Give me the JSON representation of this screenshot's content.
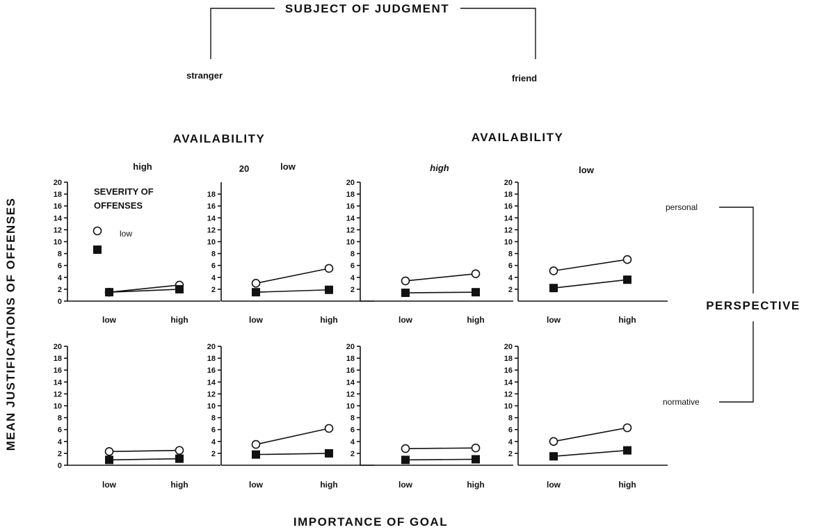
{
  "figure": {
    "top_title": "SUBJECT OF JUDGMENT",
    "subjects": [
      "stranger",
      "friend"
    ],
    "availability_label": "AVAILABILITY",
    "y_axis_label": "MEAN JUSTIFICATIONS OF OFFENSES",
    "x_axis_label": "IMPORTANCE OF GOAL",
    "perspective_label": "PERSPECTIVE",
    "perspectives": [
      "personal",
      "normative"
    ],
    "legend_title_line1": "SEVERITY OF",
    "legend_title_line2": "OFFENSES",
    "legend_low": "low",
    "stray_tick": "20"
  },
  "chart_data": [
    {
      "type": "line",
      "panel": "stranger / availability high / personal",
      "availability_label": "high",
      "categories": [
        "low",
        "high"
      ],
      "ylim": [
        0,
        20
      ],
      "yticks": [
        0,
        2,
        4,
        6,
        8,
        10,
        12,
        14,
        16,
        18,
        20
      ],
      "series": [
        {
          "marker": "open-circle",
          "values": [
            1.5,
            2.7
          ]
        },
        {
          "marker": "filled-square",
          "values": [
            1.5,
            2.0
          ]
        }
      ]
    },
    {
      "type": "line",
      "panel": "stranger / availability low / personal",
      "availability_label": "low",
      "categories": [
        "low",
        "high"
      ],
      "ylim": [
        0,
        20
      ],
      "yticks": [
        2,
        4,
        6,
        8,
        10,
        12,
        14,
        16,
        18
      ],
      "series": [
        {
          "marker": "open-circle",
          "values": [
            3.0,
            5.5
          ]
        },
        {
          "marker": "filled-square",
          "values": [
            1.5,
            1.9
          ]
        }
      ]
    },
    {
      "type": "line",
      "panel": "friend / availability high / personal",
      "availability_label": "high",
      "categories": [
        "low",
        "high"
      ],
      "ylim": [
        0,
        20
      ],
      "yticks": [
        2,
        4,
        6,
        8,
        10,
        12,
        14,
        16,
        18,
        20
      ],
      "series": [
        {
          "marker": "open-circle",
          "values": [
            3.4,
            4.6
          ]
        },
        {
          "marker": "filled-square",
          "values": [
            1.4,
            1.5
          ]
        }
      ]
    },
    {
      "type": "line",
      "panel": "friend / availability low / personal",
      "availability_label": "low",
      "categories": [
        "low",
        "high"
      ],
      "ylim": [
        0,
        20
      ],
      "yticks": [
        2,
        4,
        6,
        8,
        10,
        12,
        14,
        16,
        18,
        20
      ],
      "series": [
        {
          "marker": "open-circle",
          "values": [
            5.1,
            7.0
          ]
        },
        {
          "marker": "filled-square",
          "values": [
            2.2,
            3.6
          ]
        }
      ]
    },
    {
      "type": "line",
      "panel": "stranger / availability high / normative",
      "categories": [
        "low",
        "high"
      ],
      "ylim": [
        0,
        20
      ],
      "yticks": [
        0,
        2,
        4,
        6,
        8,
        10,
        12,
        14,
        16,
        18,
        20
      ],
      "series": [
        {
          "marker": "open-circle",
          "values": [
            2.3,
            2.5
          ]
        },
        {
          "marker": "filled-square",
          "values": [
            0.9,
            1.1
          ]
        }
      ]
    },
    {
      "type": "line",
      "panel": "stranger / availability low / normative",
      "categories": [
        "low",
        "high"
      ],
      "ylim": [
        0,
        20
      ],
      "yticks": [
        2,
        4,
        6,
        8,
        10,
        12,
        14,
        16,
        18,
        20
      ],
      "series": [
        {
          "marker": "open-circle",
          "values": [
            3.5,
            6.2
          ]
        },
        {
          "marker": "filled-square",
          "values": [
            1.8,
            2.0
          ]
        }
      ]
    },
    {
      "type": "line",
      "panel": "friend / availability high / normative",
      "categories": [
        "low",
        "high"
      ],
      "ylim": [
        0,
        20
      ],
      "yticks": [
        2,
        4,
        6,
        8,
        10,
        12,
        14,
        16,
        18,
        20
      ],
      "series": [
        {
          "marker": "open-circle",
          "values": [
            2.8,
            2.9
          ]
        },
        {
          "marker": "filled-square",
          "values": [
            0.9,
            1.0
          ]
        }
      ]
    },
    {
      "type": "line",
      "panel": "friend / availability low / normative",
      "categories": [
        "low",
        "high"
      ],
      "ylim": [
        0,
        20
      ],
      "yticks": [
        2,
        4,
        6,
        8,
        10,
        12,
        14,
        16,
        18,
        20
      ],
      "series": [
        {
          "marker": "open-circle",
          "values": [
            4.0,
            6.3
          ]
        },
        {
          "marker": "filled-square",
          "values": [
            1.5,
            2.5
          ]
        }
      ]
    }
  ]
}
